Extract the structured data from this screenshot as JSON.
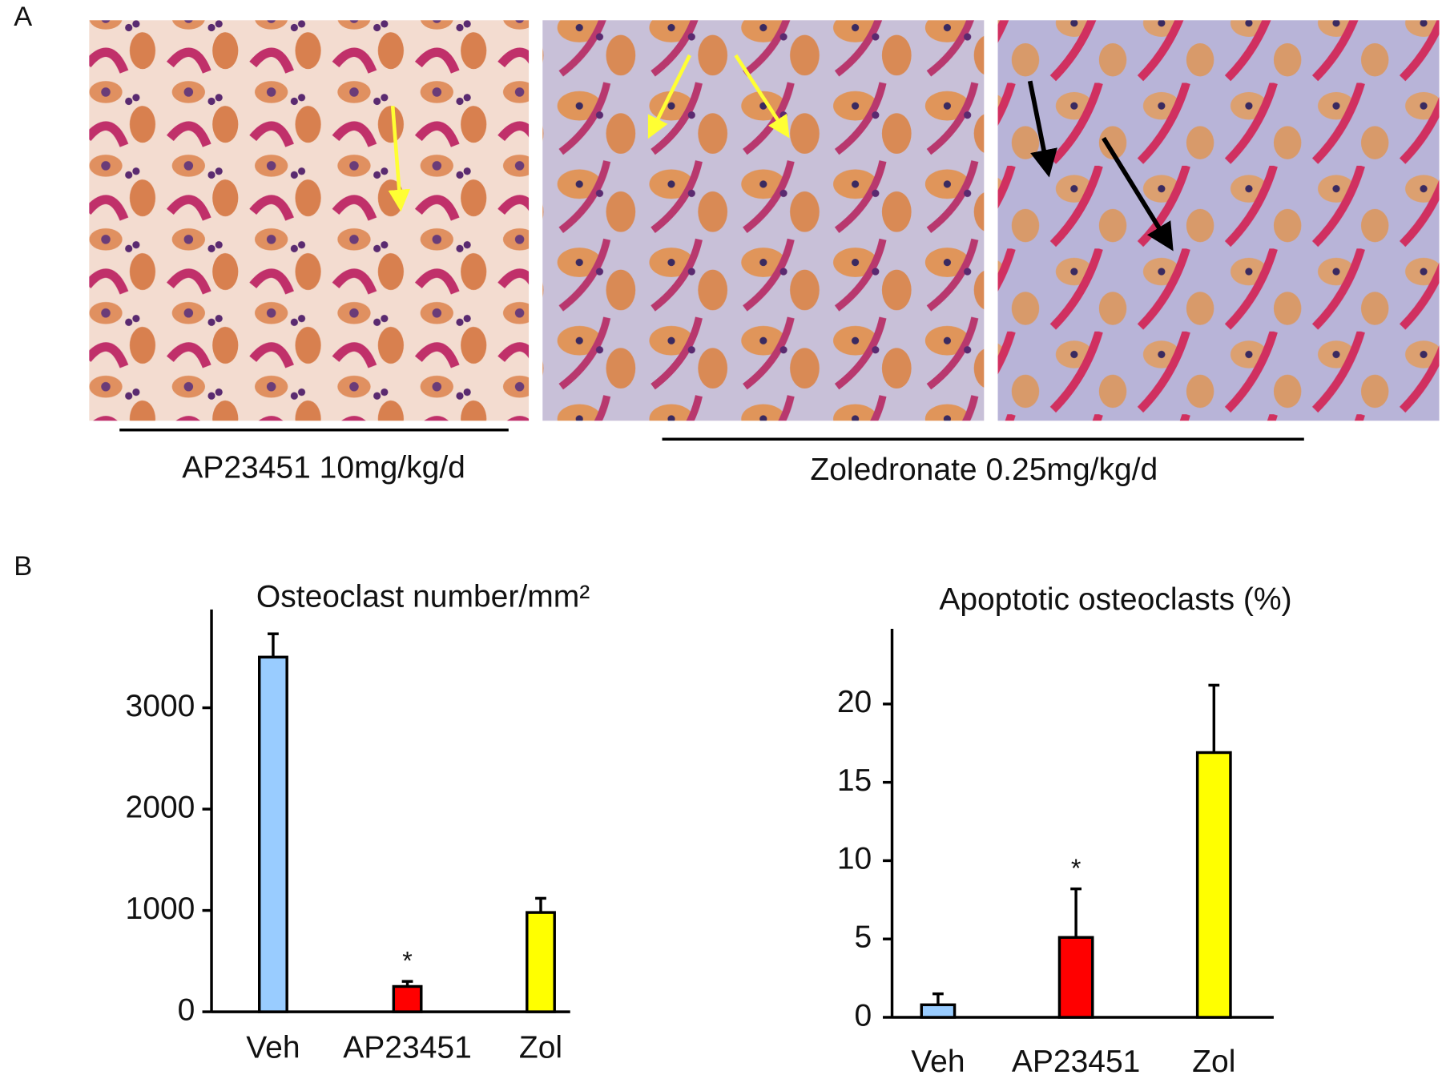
{
  "panel_a": {
    "label": "A",
    "captions": [
      "AP23451 10mg/kg/d",
      "Zoledronate 0.25mg/kg/d"
    ]
  },
  "panel_b": {
    "label": "B"
  },
  "chart_data": [
    {
      "type": "bar",
      "title": "Osteoclast number/mm²",
      "categories": [
        "Veh",
        "AP23451",
        "Zol"
      ],
      "values": [
        3500,
        250,
        980
      ],
      "errors": [
        230,
        50,
        140
      ],
      "colors": [
        "#99ccff",
        "#ff0000",
        "#ffff00"
      ],
      "annotations": [
        {
          "category": "AP23451",
          "text": "*"
        }
      ],
      "ylim": [
        0,
        3970
      ],
      "yticks": [
        0,
        1000,
        2000,
        3000
      ]
    },
    {
      "type": "bar",
      "title": "Apoptotic osteoclasts (%)",
      "categories": [
        "Veh",
        "AP23451",
        "Zol"
      ],
      "values": [
        0.8,
        5.1,
        16.9
      ],
      "errors": [
        0.7,
        3.1,
        4.3
      ],
      "colors": [
        "#99ccff",
        "#ff0000",
        "#ffff00"
      ],
      "annotations": [
        {
          "category": "AP23451",
          "text": "*"
        }
      ],
      "ylim": [
        0,
        24.8
      ],
      "yticks": [
        0,
        5,
        10,
        15,
        20
      ]
    }
  ]
}
